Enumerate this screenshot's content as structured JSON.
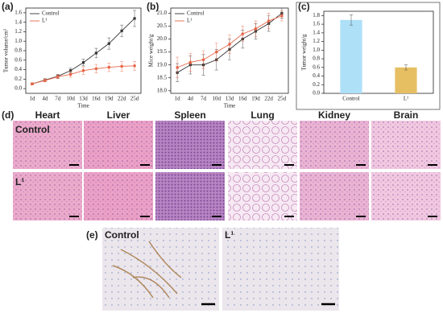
{
  "chart_data": [
    {
      "type": "line",
      "panel_label": "(a)",
      "x_label": "Time",
      "y_label": "Tumor volume/cm³",
      "categories": [
        "1d",
        "4d",
        "7d",
        "10d",
        "13d",
        "16d",
        "19d",
        "22d",
        "25d"
      ],
      "series": [
        {
          "name": "Control",
          "color": "#333333",
          "values": [
            0.1,
            0.18,
            0.26,
            0.38,
            0.55,
            0.75,
            0.95,
            1.22,
            1.48
          ],
          "errors": [
            0.02,
            0.03,
            0.04,
            0.05,
            0.07,
            0.1,
            0.12,
            0.12,
            0.17
          ]
        },
        {
          "name": "L¹",
          "color": "#e8674a",
          "values": [
            0.1,
            0.17,
            0.25,
            0.3,
            0.38,
            0.42,
            0.45,
            0.47,
            0.48
          ],
          "errors": [
            0.02,
            0.03,
            0.04,
            0.06,
            0.08,
            0.09,
            0.09,
            0.1,
            0.09
          ]
        }
      ],
      "ylim": [
        -0.1,
        1.7
      ],
      "yticks": [
        {
          "value": 0,
          "label": "0.0"
        },
        0.2,
        0.4,
        0.6,
        0.8,
        {
          "value": 1,
          "label": "1.0"
        },
        1.2,
        1.4,
        1.6
      ],
      "legend": "top-left"
    },
    {
      "type": "line",
      "panel_label": "(b)",
      "x_label": "Time",
      "y_label": "Mice weight/g",
      "categories": [
        "1d",
        "4d",
        "7d",
        "10d",
        "13d",
        "16d",
        "19d",
        "22d",
        "25d"
      ],
      "series": [
        {
          "name": "Control",
          "color": "#333333",
          "values": [
            18.7,
            19.0,
            19.0,
            19.2,
            19.6,
            20.0,
            20.3,
            20.6,
            21.0
          ],
          "errors": [
            0.35,
            0.35,
            0.4,
            0.4,
            0.4,
            0.35,
            0.3,
            0.3,
            0.2
          ]
        },
        {
          "name": "L¹",
          "color": "#e8674a",
          "values": [
            18.9,
            19.1,
            19.2,
            19.5,
            19.8,
            20.2,
            20.4,
            20.7,
            20.9
          ],
          "errors": [
            0.4,
            0.35,
            0.35,
            0.35,
            0.35,
            0.3,
            0.3,
            0.3,
            0.2
          ]
        }
      ],
      "ylim": [
        17.9,
        21.2
      ],
      "yticks": [
        {
          "value": 18,
          "label": "18.0"
        },
        18.5,
        {
          "value": 19,
          "label": "19.0"
        },
        19.5,
        {
          "value": 20,
          "label": "20.0"
        },
        20.5,
        {
          "value": 21,
          "label": "21.0"
        }
      ],
      "legend": "top-left"
    },
    {
      "type": "bar",
      "panel_label": "(c)",
      "y_label": "Tumor weight/g",
      "categories": [
        "Control",
        "L¹"
      ],
      "values": [
        1.7,
        0.6
      ],
      "errors": [
        0.12,
        0.06
      ],
      "colors": [
        "#aee0f8",
        "#e6bf63"
      ],
      "ylim": [
        0,
        1.9
      ],
      "yticks": [
        {
          "value": 0,
          "label": "0.0"
        },
        0.2,
        0.4,
        0.6,
        0.8,
        {
          "value": 1,
          "label": "1.0"
        },
        1.2,
        1.4,
        1.6,
        1.8
      ]
    }
  ],
  "histology": {
    "panel_label": "(d)",
    "columns": [
      "Heart",
      "Liver",
      "Spleen",
      "Lung",
      "Kidney",
      "Brain"
    ],
    "rows": [
      "Control",
      "L¹"
    ]
  },
  "staining": {
    "panel_label": "(e)",
    "columns": [
      "Control",
      "L¹"
    ]
  }
}
